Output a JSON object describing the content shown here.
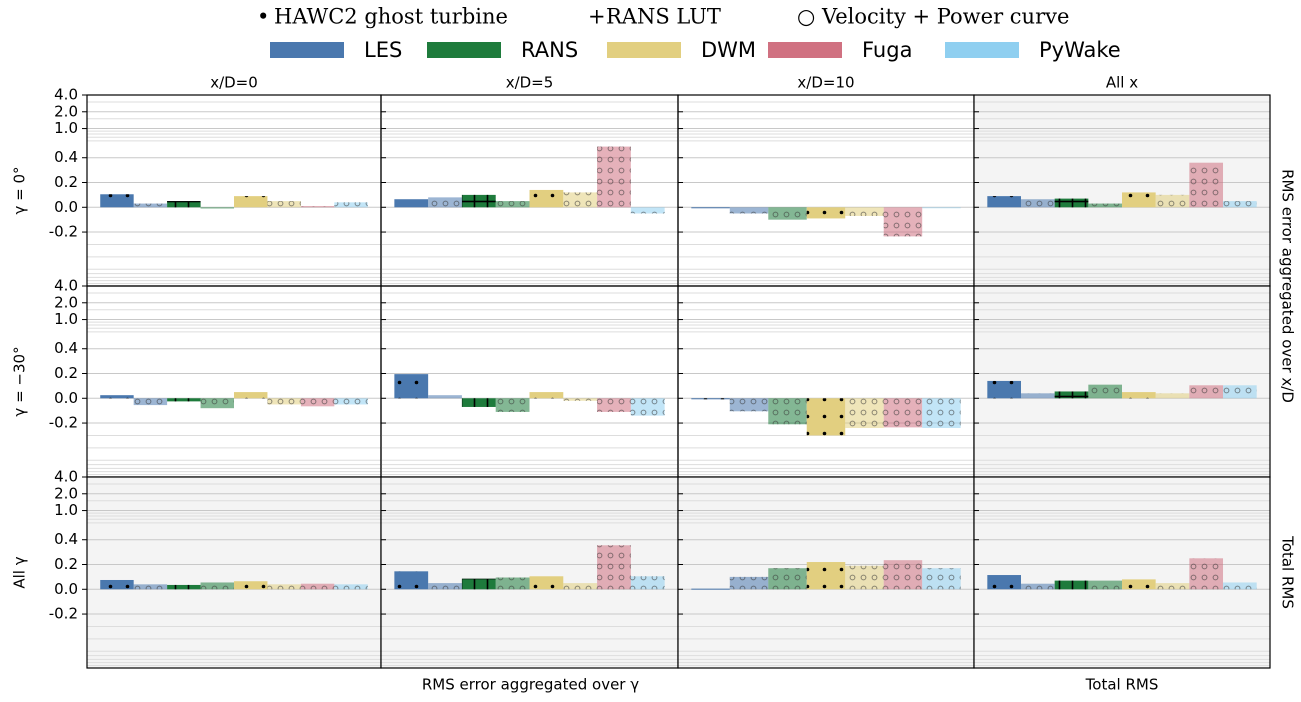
{
  "chart_data": {
    "type": "bar",
    "methods": [
      {
        "symbol": "•",
        "name": "HAWC2 ghost turbine"
      },
      {
        "symbol": "+",
        "name": "RANS LUT"
      },
      {
        "symbol": "○",
        "name": "Velocity + Power curve"
      }
    ],
    "series": [
      {
        "name": "LES",
        "color": "#4a78ae",
        "hatch": "dots",
        "opacity": 1
      },
      {
        "name": "LES",
        "color": "#4a78ae",
        "hatch": "circles",
        "opacity": 0.55
      },
      {
        "name": "RANS",
        "color": "#1e7b3c",
        "hatch": "plus",
        "opacity": 1
      },
      {
        "name": "RANS",
        "color": "#1e7b3c",
        "hatch": "circles",
        "opacity": 0.55
      },
      {
        "name": "DWM",
        "color": "#e2cf80",
        "hatch": "dots",
        "opacity": 1
      },
      {
        "name": "DWM",
        "color": "#e2cf80",
        "hatch": "circles",
        "opacity": 0.55
      },
      {
        "name": "Fuga",
        "color": "#d07181",
        "hatch": "circles",
        "opacity": 0.55
      },
      {
        "name": "PyWake",
        "color": "#8fcff0",
        "hatch": "circles",
        "opacity": 0.55
      }
    ],
    "columns": [
      "x/D=0",
      "x/D=5",
      "x/D=10",
      "All x"
    ],
    "rows": [
      "γ = 0°",
      "γ = −30°",
      "All γ"
    ],
    "right_labels": [
      "RMS error aggregated over x/D",
      "Total RMS"
    ],
    "bottom_labels": [
      "RMS error aggregated over γ",
      "Total RMS"
    ],
    "yscale": "symlog",
    "linthresh": 0.5,
    "linscale": 1,
    "ylim": [
      -1,
      4
    ],
    "yticks": [
      -0.2,
      {
        "value": 0,
        "label": "0.0"
      },
      0.2,
      0.4,
      {
        "value": 1,
        "label": "1.0"
      },
      {
        "value": 2,
        "label": "2.0"
      },
      {
        "value": 4,
        "label": "4.0"
      }
    ],
    "yminorticks": [
      -0.9,
      -0.8,
      -0.7,
      -0.6,
      -0.5,
      -0.4,
      -0.3,
      0.6,
      0.7,
      0.8,
      0.9,
      1.5,
      3
    ],
    "grid": true,
    "values": [
      [
        [
          0.105,
          0.03,
          0.05,
          -0.01,
          0.09,
          0.05,
          0.01,
          0.04
        ],
        [
          0.065,
          0.08,
          0.1,
          0.05,
          0.14,
          0.12,
          0.49,
          -0.05
        ],
        [
          -0.005,
          -0.05,
          null,
          -0.1,
          -0.09,
          -0.07,
          -0.235,
          -0.005
        ],
        [
          0.09,
          0.065,
          0.07,
          0.03,
          0.12,
          0.1,
          0.36,
          0.05
        ]
      ],
      [
        [
          0.025,
          -0.055,
          -0.025,
          -0.08,
          0.05,
          -0.05,
          -0.065,
          -0.05
        ],
        [
          0.195,
          0.025,
          -0.07,
          -0.11,
          0.05,
          -0.02,
          -0.11,
          -0.14
        ],
        [
          -0.005,
          -0.105,
          null,
          -0.21,
          -0.3,
          -0.24,
          -0.235,
          -0.24
        ],
        [
          0.14,
          0.04,
          0.055,
          0.11,
          0.05,
          0.04,
          0.105,
          0.105
        ]
      ],
      [
        [
          0.075,
          0.04,
          0.035,
          0.055,
          0.065,
          0.04,
          0.045,
          0.04
        ],
        [
          0.145,
          0.05,
          0.085,
          0.095,
          0.105,
          0.05,
          0.355,
          0.105
        ],
        [
          0.005,
          0.1,
          null,
          0.17,
          0.22,
          0.19,
          0.235,
          0.17
        ],
        [
          0.115,
          0.045,
          0.07,
          0.07,
          0.08,
          0.05,
          0.25,
          0.055
        ]
      ]
    ]
  }
}
